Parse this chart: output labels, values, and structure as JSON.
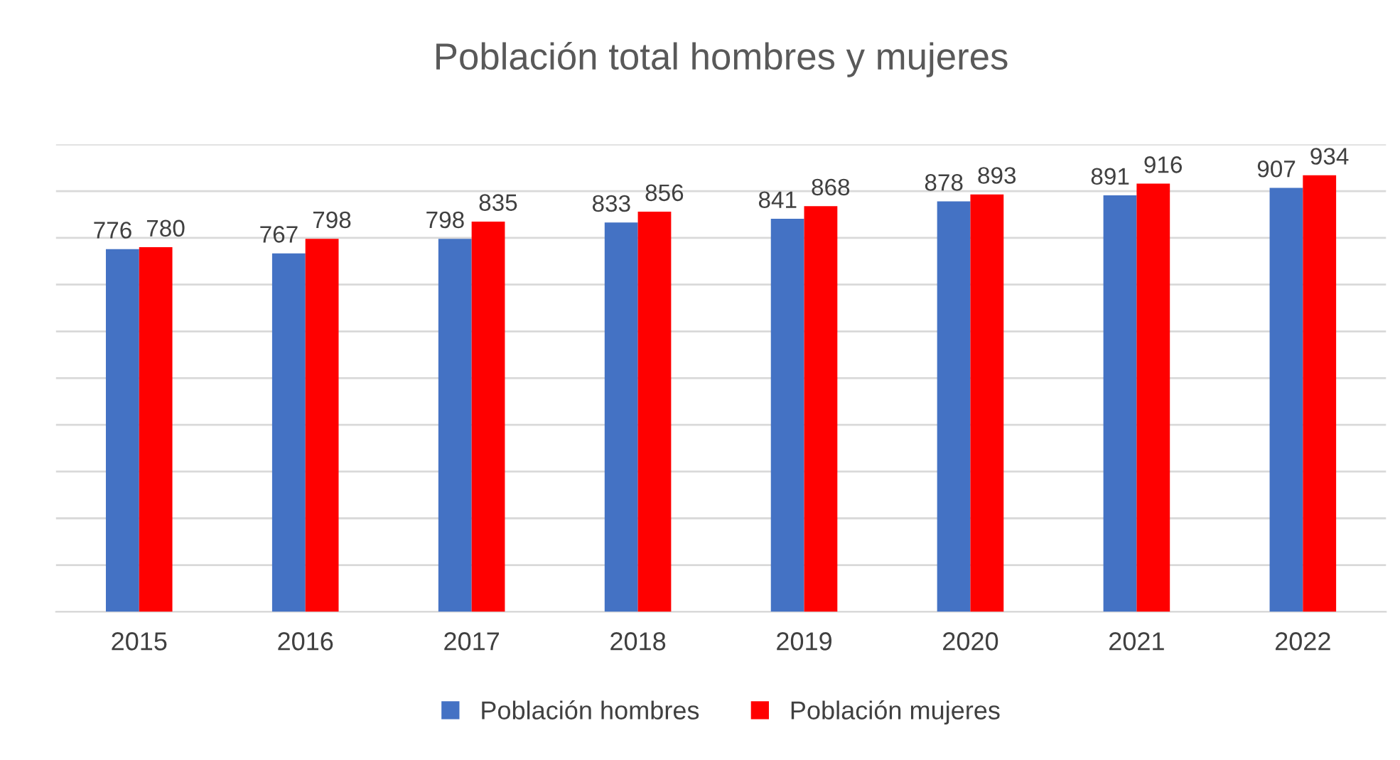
{
  "chart_data": {
    "type": "bar",
    "title": "Población total hombres y mujeres",
    "categories": [
      "2015",
      "2016",
      "2017",
      "2018",
      "2019",
      "2020",
      "2021",
      "2022"
    ],
    "series": [
      {
        "name": "Población hombres",
        "color": "#4472c4",
        "values": [
          776,
          767,
          798,
          833,
          841,
          878,
          891,
          907
        ]
      },
      {
        "name": "Población mujeres",
        "color": "#ff0000",
        "values": [
          780,
          798,
          835,
          856,
          868,
          893,
          916,
          934
        ]
      }
    ],
    "ylim": [
      0,
      1000
    ],
    "yticks": [
      0,
      100,
      200,
      300,
      400,
      500,
      600,
      700,
      800,
      900,
      1000
    ],
    "tick_labels": "x",
    "grid": "y",
    "legend": "bottom",
    "data_labels": true
  }
}
